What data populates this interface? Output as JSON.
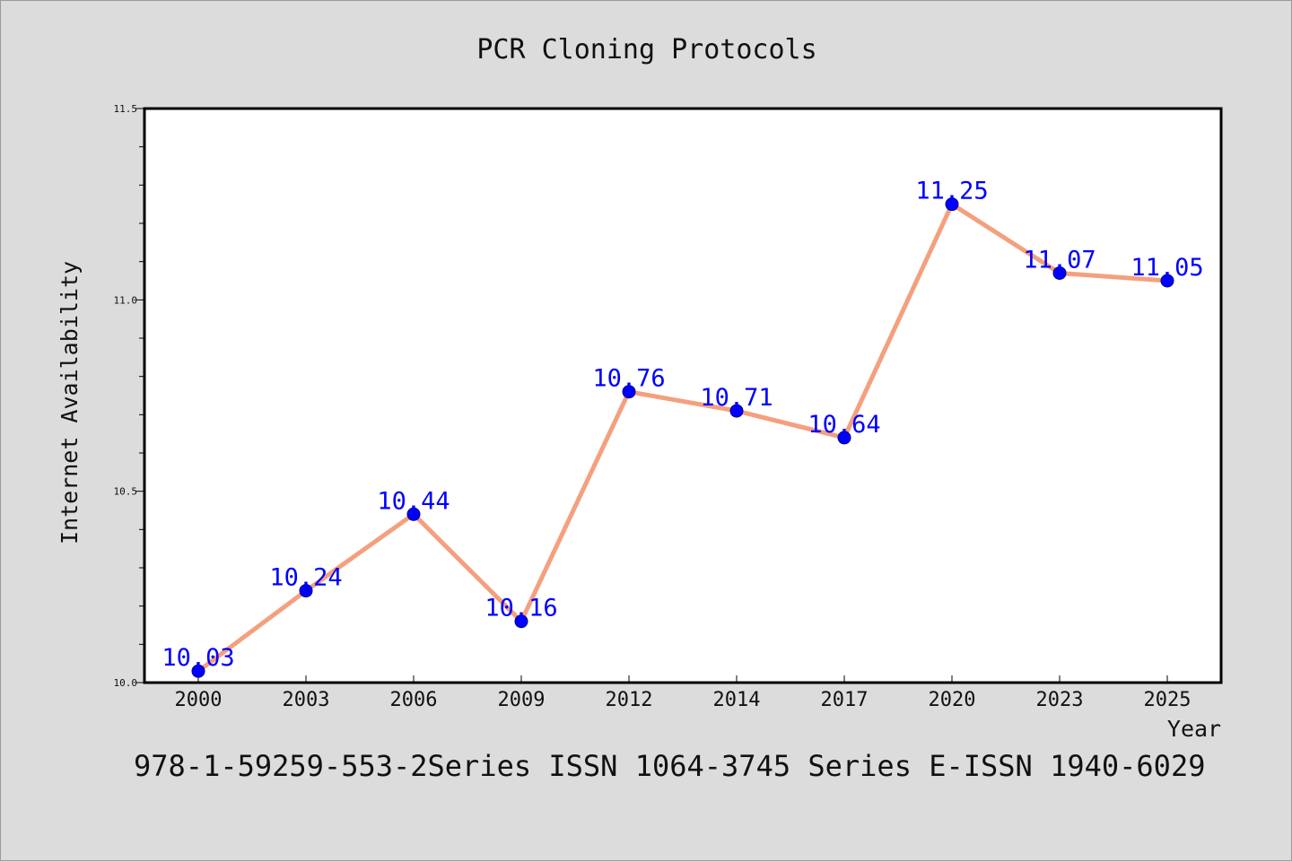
{
  "chart_data": {
    "type": "line",
    "title": "PCR Cloning Protocols",
    "xlabel": "Year",
    "ylabel": "Internet Availability",
    "categories": [
      "2000",
      "2003",
      "2006",
      "2009",
      "2012",
      "2014",
      "2017",
      "2020",
      "2023",
      "2025"
    ],
    "series": [
      {
        "values": [
          10.03,
          10.24,
          10.44,
          10.16,
          10.76,
          10.71,
          10.64,
          11.25,
          11.07,
          11.05
        ],
        "labels": [
          "10.03",
          "10.24",
          "10.44",
          "10.16",
          "10.76",
          "10.71",
          "10.64",
          "11.25",
          "11.07",
          "11.05"
        ],
        "line_color": "#f4a07e",
        "marker_color": "#0000ff"
      }
    ],
    "ylim": [
      10.0,
      11.5
    ],
    "yticks": [
      "10.0",
      "10.5",
      "11.0",
      "11.5"
    ],
    "grid": false,
    "legend": "none"
  },
  "footer_text": "978-1-59259-553-2Series ISSN 1064-3745 Series E-ISSN 1940-6029"
}
